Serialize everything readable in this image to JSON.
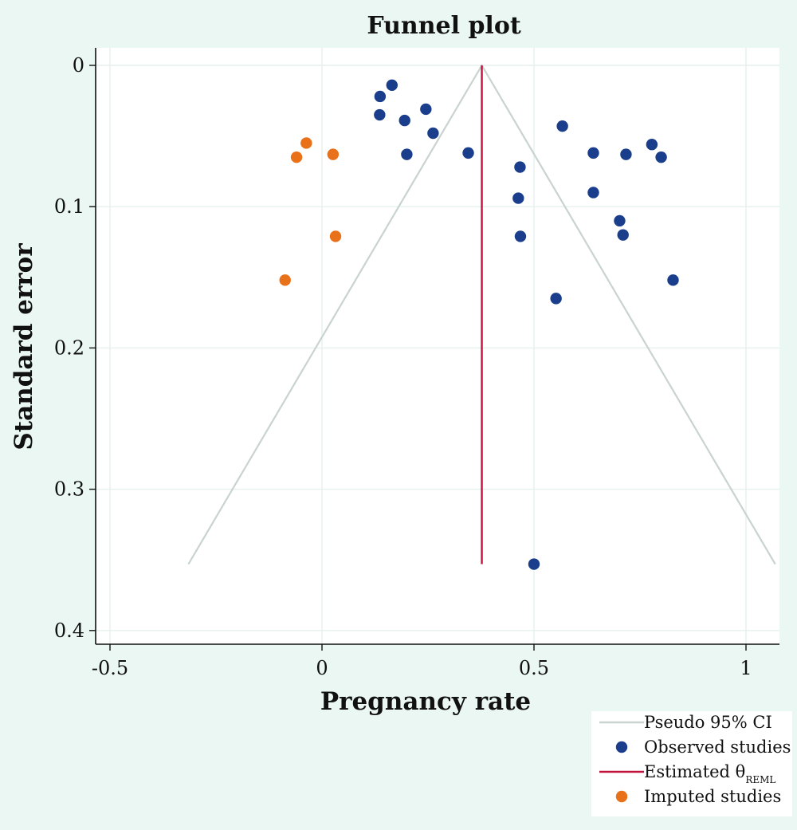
{
  "chart_data": {
    "type": "scatter",
    "title": "Funnel plot",
    "xlabel": "Pregnancy rate",
    "ylabel": "Standard error",
    "xlim": [
      -0.5,
      1.05
    ],
    "ylim": [
      0.4,
      0
    ],
    "y_axis_reversed": true,
    "x_ticks": [
      -0.5,
      0,
      0.5,
      1
    ],
    "x_tick_labels": [
      "-0.5",
      "0",
      "0.5",
      "1"
    ],
    "y_ticks": [
      0,
      0.1,
      0.2,
      0.3,
      0.4
    ],
    "y_tick_labels": [
      "0",
      "0.1",
      "0.2",
      "0.3",
      "0.4"
    ],
    "grid": true,
    "legend_position": "bottom-right",
    "estimate": 0.377,
    "max_se": 0.353,
    "colors": {
      "background": "#eaf7f3",
      "plot_background": "#ffffff",
      "grid": "#e6f0ee",
      "ci_lines": "#c9d3d1",
      "estimate_line": "#c0143c",
      "observed": "#1a3e8c",
      "imputed": "#e8711a"
    },
    "series": [
      {
        "name": "Pseudo 95% CI",
        "kind": "line",
        "points": [
          [
            -0.315,
            0.353
          ],
          [
            0.377,
            0.0
          ],
          [
            1.069,
            0.353
          ]
        ]
      },
      {
        "name": "Observed studies",
        "kind": "scatter",
        "points": [
          [
            0.165,
            0.014
          ],
          [
            0.137,
            0.022
          ],
          [
            0.245,
            0.031
          ],
          [
            0.136,
            0.035
          ],
          [
            0.195,
            0.039
          ],
          [
            0.262,
            0.048
          ],
          [
            0.567,
            0.043
          ],
          [
            0.345,
            0.062
          ],
          [
            0.2,
            0.063
          ],
          [
            0.64,
            0.062
          ],
          [
            0.717,
            0.063
          ],
          [
            0.778,
            0.056
          ],
          [
            0.8,
            0.065
          ],
          [
            0.467,
            0.072
          ],
          [
            0.64,
            0.09
          ],
          [
            0.463,
            0.094
          ],
          [
            0.702,
            0.11
          ],
          [
            0.71,
            0.12
          ],
          [
            0.468,
            0.121
          ],
          [
            0.828,
            0.152
          ],
          [
            0.552,
            0.165
          ],
          [
            0.5,
            0.353
          ]
        ]
      },
      {
        "name": "Estimated θREML",
        "legend_main": "Estimated θ",
        "legend_sub": "REML",
        "kind": "vline",
        "x": 0.377,
        "y_range": [
          0,
          0.353
        ]
      },
      {
        "name": "Imputed studies",
        "kind": "scatter",
        "points": [
          [
            -0.037,
            0.055
          ],
          [
            -0.06,
            0.065
          ],
          [
            0.026,
            0.063
          ],
          [
            0.032,
            0.121
          ],
          [
            -0.087,
            0.152
          ]
        ]
      }
    ]
  }
}
